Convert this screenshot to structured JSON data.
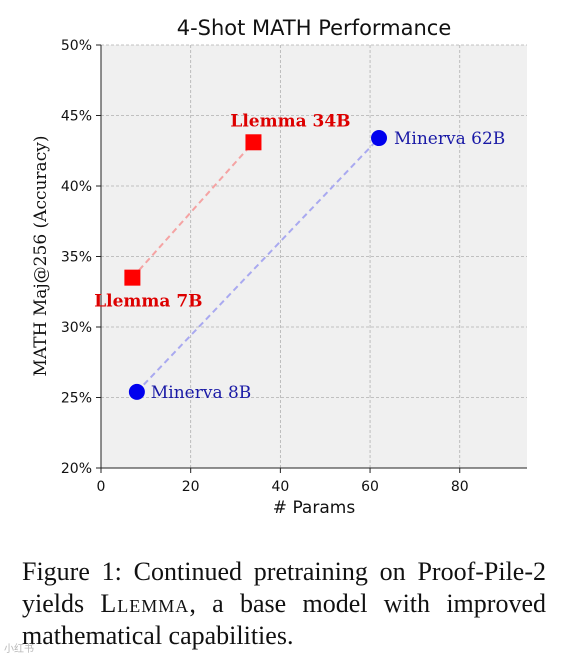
{
  "chart_data": {
    "type": "scatter",
    "title": "4-Shot MATH Performance",
    "xlabel": "# Params",
    "ylabel": "MATH Maj@256 (Accuracy)",
    "xlim": [
      0,
      95
    ],
    "ylim": [
      20,
      50
    ],
    "xticks": [
      0,
      20,
      40,
      60,
      80
    ],
    "xtick_labels": [
      "0",
      "20",
      "40",
      "60",
      "80"
    ],
    "yticks": [
      20,
      25,
      30,
      35,
      40,
      45,
      50
    ],
    "ytick_labels": [
      "20%",
      "25%",
      "30%",
      "35%",
      "40%",
      "45%",
      "50%"
    ],
    "grid": true,
    "series": [
      {
        "color": "#ff0000",
        "marker": "square",
        "line_style": "dashed",
        "points": [
          {
            "x": 7,
            "y": 33.5,
            "label": "Llemma 7B"
          },
          {
            "x": 34,
            "y": 43.1,
            "label": "Llemma 34B"
          }
        ]
      },
      {
        "color": "#0000ee",
        "marker": "circle",
        "line_style": "dashed",
        "points": [
          {
            "x": 8,
            "y": 25.4,
            "label": "Minerva 8B"
          },
          {
            "x": 62,
            "y": 43.4,
            "label": "Minerva 62B"
          }
        ]
      }
    ]
  },
  "caption": {
    "prefix": "Figure 1: Continued pretraining on Proof-Pile-2 yields ",
    "model_name": "Llemma",
    "suffix": ", a base model with improved mathematical capabilities."
  },
  "watermark": "小红书"
}
